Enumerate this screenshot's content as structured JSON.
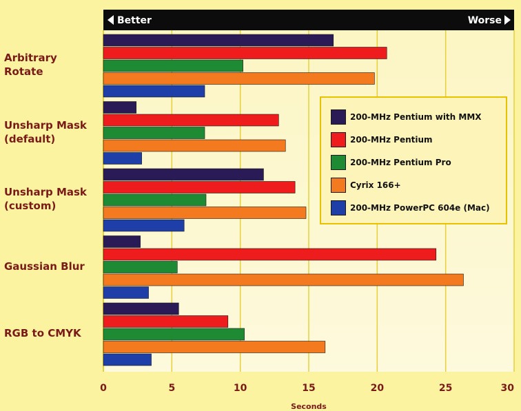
{
  "chart_data": {
    "type": "bar",
    "orientation": "horizontal",
    "header": {
      "left_label": "Better",
      "right_label": "Worse"
    },
    "categories": [
      "Arbitrary\nRotate",
      "Unsharp Mask\n(default)",
      "Unsharp Mask\n(custom)",
      "Gaussian Blur",
      "RGB to CMYK"
    ],
    "series": [
      {
        "name": "200-MHz Pentium with MMX",
        "color": "#2a1a55",
        "values": [
          16.8,
          2.4,
          11.7,
          2.7,
          5.5
        ]
      },
      {
        "name": "200-MHz Pentium",
        "color": "#ee1c1c",
        "values": [
          20.7,
          12.8,
          14.0,
          24.3,
          9.1
        ]
      },
      {
        "name": "200-MHz Pentium Pro",
        "color": "#1f8a34",
        "values": [
          10.2,
          7.4,
          7.5,
          5.4,
          10.3
        ]
      },
      {
        "name": "Cyrix 166+",
        "color": "#f47a20",
        "values": [
          19.8,
          13.3,
          14.8,
          26.3,
          16.2
        ]
      },
      {
        "name": "200-MHz PowerPC 604e (Mac)",
        "color": "#1e3ea8",
        "values": [
          7.4,
          2.8,
          5.9,
          3.3,
          3.5
        ]
      }
    ],
    "xlabel": "Seconds",
    "xlim": [
      0,
      30
    ],
    "xticks": [
      0,
      5,
      10,
      15,
      20,
      25,
      30
    ],
    "grid": true,
    "legend_position": "right"
  }
}
